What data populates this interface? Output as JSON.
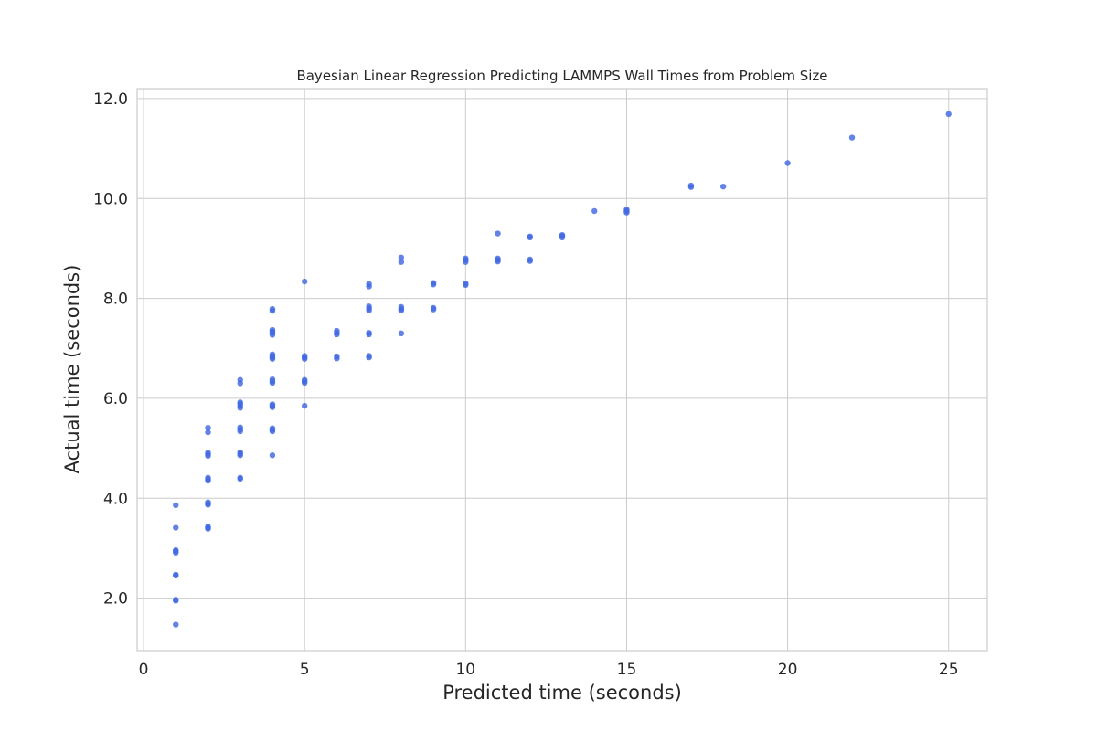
{
  "chart_data": {
    "type": "scatter",
    "title": "Bayesian Linear Regression Predicting LAMMPS Wall Times from Problem Size",
    "xlabel": "Predicted time (seconds)",
    "ylabel": "Actual time (seconds)",
    "xlim": [
      -0.2,
      26.2
    ],
    "ylim": [
      0.95,
      12.2
    ],
    "xticks": [
      0,
      5,
      10,
      15,
      20,
      25
    ],
    "xtick_labels": [
      "0",
      "5",
      "10",
      "15",
      "20",
      "25"
    ],
    "yticks": [
      2,
      4,
      6,
      8,
      10,
      12
    ],
    "ytick_labels": [
      "2.0",
      "4.0",
      "6.0",
      "8.0",
      "10.0",
      "12.0"
    ],
    "grid": true,
    "point_color": "#4169e1",
    "points": [
      {
        "x": 1,
        "y": 1.47
      },
      {
        "x": 1,
        "y": 1.95
      },
      {
        "x": 1,
        "y": 1.97
      },
      {
        "x": 1,
        "y": 2.45
      },
      {
        "x": 1,
        "y": 2.47
      },
      {
        "x": 1,
        "y": 2.91
      },
      {
        "x": 1,
        "y": 2.94
      },
      {
        "x": 1,
        "y": 2.96
      },
      {
        "x": 1,
        "y": 3.41
      },
      {
        "x": 1,
        "y": 3.86
      },
      {
        "x": 2,
        "y": 3.39
      },
      {
        "x": 2,
        "y": 3.41
      },
      {
        "x": 2,
        "y": 3.43
      },
      {
        "x": 2,
        "y": 3.87
      },
      {
        "x": 2,
        "y": 3.89
      },
      {
        "x": 2,
        "y": 3.92
      },
      {
        "x": 2,
        "y": 4.35
      },
      {
        "x": 2,
        "y": 4.38
      },
      {
        "x": 2,
        "y": 4.41
      },
      {
        "x": 2,
        "y": 4.85
      },
      {
        "x": 2,
        "y": 4.88
      },
      {
        "x": 2,
        "y": 4.91
      },
      {
        "x": 2,
        "y": 5.32
      },
      {
        "x": 2,
        "y": 5.41
      },
      {
        "x": 3,
        "y": 4.39
      },
      {
        "x": 3,
        "y": 4.41
      },
      {
        "x": 3,
        "y": 4.86
      },
      {
        "x": 3,
        "y": 4.89
      },
      {
        "x": 3,
        "y": 4.92
      },
      {
        "x": 3,
        "y": 5.34
      },
      {
        "x": 3,
        "y": 5.38
      },
      {
        "x": 3,
        "y": 5.42
      },
      {
        "x": 3,
        "y": 5.81
      },
      {
        "x": 3,
        "y": 5.85
      },
      {
        "x": 3,
        "y": 5.89
      },
      {
        "x": 3,
        "y": 5.92
      },
      {
        "x": 3,
        "y": 6.3
      },
      {
        "x": 3,
        "y": 6.37
      },
      {
        "x": 4,
        "y": 4.86
      },
      {
        "x": 4,
        "y": 5.34
      },
      {
        "x": 4,
        "y": 5.37
      },
      {
        "x": 4,
        "y": 5.4
      },
      {
        "x": 4,
        "y": 5.82
      },
      {
        "x": 4,
        "y": 5.85
      },
      {
        "x": 4,
        "y": 5.88
      },
      {
        "x": 4,
        "y": 6.31
      },
      {
        "x": 4,
        "y": 6.34
      },
      {
        "x": 4,
        "y": 6.38
      },
      {
        "x": 4,
        "y": 6.79
      },
      {
        "x": 4,
        "y": 6.82
      },
      {
        "x": 4,
        "y": 6.85
      },
      {
        "x": 4,
        "y": 6.88
      },
      {
        "x": 4,
        "y": 7.27
      },
      {
        "x": 4,
        "y": 7.31
      },
      {
        "x": 4,
        "y": 7.34
      },
      {
        "x": 4,
        "y": 7.37
      },
      {
        "x": 4,
        "y": 7.75
      },
      {
        "x": 4,
        "y": 7.79
      },
      {
        "x": 5,
        "y": 5.85
      },
      {
        "x": 5,
        "y": 6.31
      },
      {
        "x": 5,
        "y": 6.34
      },
      {
        "x": 5,
        "y": 6.37
      },
      {
        "x": 5,
        "y": 6.79
      },
      {
        "x": 5,
        "y": 6.82
      },
      {
        "x": 5,
        "y": 6.85
      },
      {
        "x": 5,
        "y": 8.34
      },
      {
        "x": 6,
        "y": 6.8
      },
      {
        "x": 6,
        "y": 6.84
      },
      {
        "x": 6,
        "y": 7.28
      },
      {
        "x": 6,
        "y": 7.31
      },
      {
        "x": 6,
        "y": 7.35
      },
      {
        "x": 7,
        "y": 6.82
      },
      {
        "x": 7,
        "y": 6.85
      },
      {
        "x": 7,
        "y": 7.28
      },
      {
        "x": 7,
        "y": 7.31
      },
      {
        "x": 7,
        "y": 7.76
      },
      {
        "x": 7,
        "y": 7.8
      },
      {
        "x": 7,
        "y": 7.84
      },
      {
        "x": 7,
        "y": 8.24
      },
      {
        "x": 7,
        "y": 8.29
      },
      {
        "x": 8,
        "y": 7.3
      },
      {
        "x": 8,
        "y": 7.76
      },
      {
        "x": 8,
        "y": 7.79
      },
      {
        "x": 8,
        "y": 7.83
      },
      {
        "x": 8,
        "y": 8.73
      },
      {
        "x": 8,
        "y": 8.82
      },
      {
        "x": 9,
        "y": 7.78
      },
      {
        "x": 9,
        "y": 7.81
      },
      {
        "x": 9,
        "y": 8.28
      },
      {
        "x": 9,
        "y": 8.31
      },
      {
        "x": 10,
        "y": 8.27
      },
      {
        "x": 10,
        "y": 8.3
      },
      {
        "x": 10,
        "y": 8.73
      },
      {
        "x": 10,
        "y": 8.77
      },
      {
        "x": 10,
        "y": 8.8
      },
      {
        "x": 11,
        "y": 8.74
      },
      {
        "x": 11,
        "y": 8.77
      },
      {
        "x": 11,
        "y": 8.8
      },
      {
        "x": 11,
        "y": 9.3
      },
      {
        "x": 12,
        "y": 8.75
      },
      {
        "x": 12,
        "y": 8.78
      },
      {
        "x": 12,
        "y": 9.22
      },
      {
        "x": 12,
        "y": 9.24
      },
      {
        "x": 13,
        "y": 9.22
      },
      {
        "x": 13,
        "y": 9.25
      },
      {
        "x": 13,
        "y": 9.27
      },
      {
        "x": 14,
        "y": 9.75
      },
      {
        "x": 15,
        "y": 9.72
      },
      {
        "x": 15,
        "y": 9.75
      },
      {
        "x": 15,
        "y": 9.78
      },
      {
        "x": 17,
        "y": 10.23
      },
      {
        "x": 17,
        "y": 10.26
      },
      {
        "x": 18,
        "y": 10.24
      },
      {
        "x": 20,
        "y": 10.71
      },
      {
        "x": 22,
        "y": 11.22
      },
      {
        "x": 25,
        "y": 11.69
      }
    ]
  }
}
